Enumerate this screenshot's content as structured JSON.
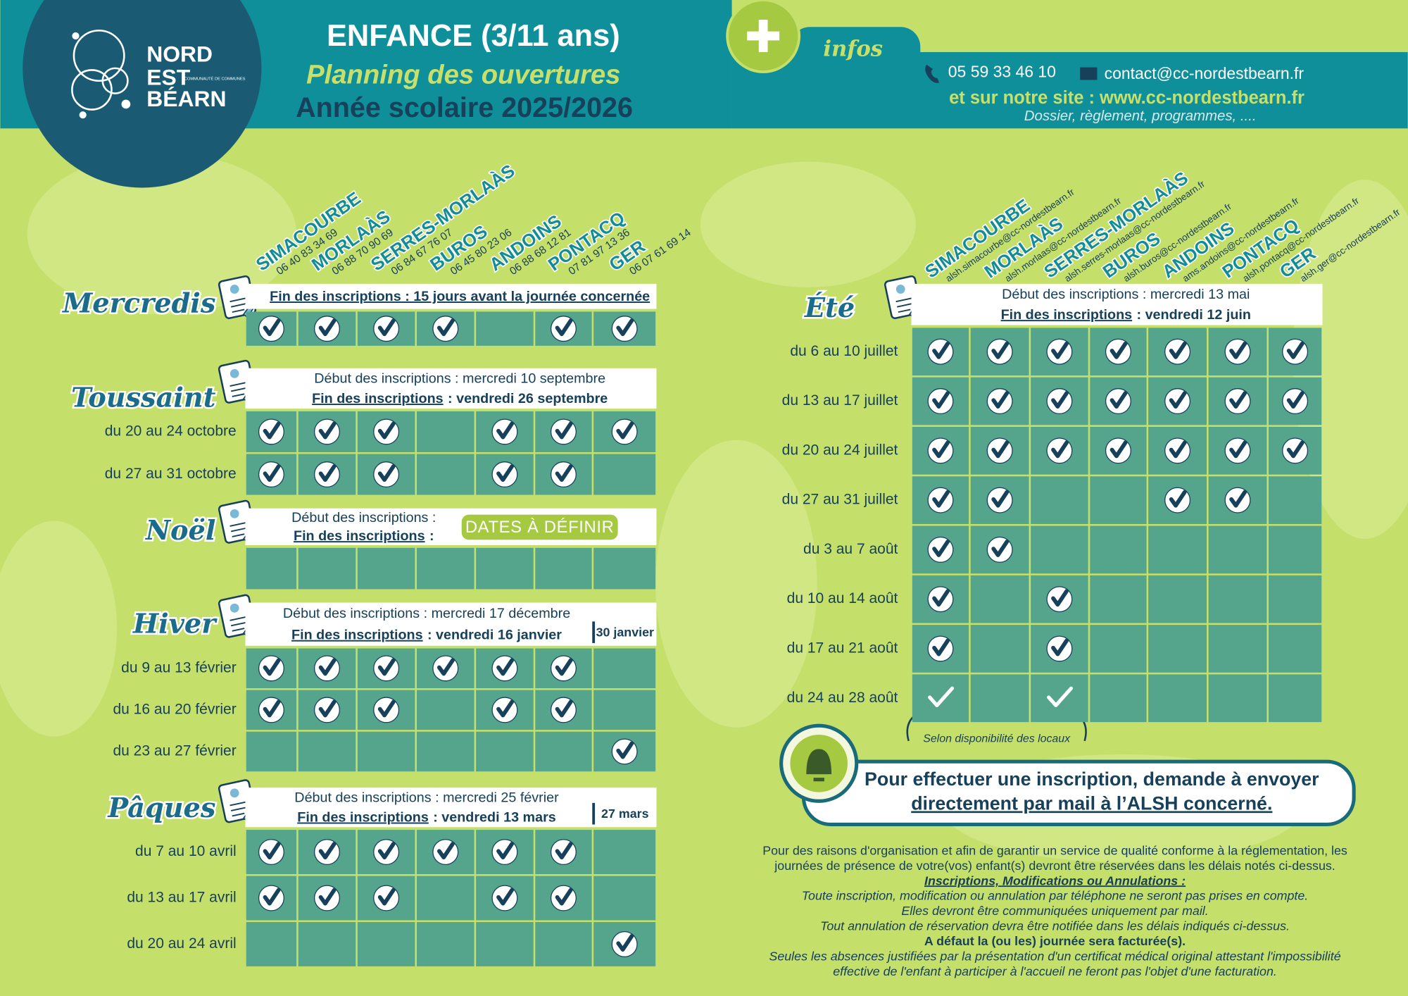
{
  "header": {
    "logo": {
      "line1": "NORD",
      "line2": "EST",
      "line3": "BÉARN",
      "tagline": "COMMUNAUTÉ DE COMMUNES"
    },
    "title": "ENFANCE (3/11 ans)",
    "subtitle": "Planning des ouvertures",
    "year": "Année scolaire 2025/2026"
  },
  "infos": {
    "label": "infos",
    "phone": "05 59 33 46 10",
    "email": "contact@cc-nordestbearn.fr",
    "site": "et sur notre site : www.cc-nordestbearn.fr",
    "note": "Dossier, règlement, programmes, ...."
  },
  "left_centres": [
    {
      "name": "SIMACOURBE",
      "contact": "06 40 83 34 69"
    },
    {
      "name": "MORLAÀS",
      "contact": "06 88 70 90 69"
    },
    {
      "name": "SERRES-MORLAÀS",
      "contact": "06 84 67 76 07"
    },
    {
      "name": "BUROS",
      "contact": "06 45 80 23 06"
    },
    {
      "name": "ANDOINS",
      "contact": "06 88 68 12 81"
    },
    {
      "name": "PONTACQ",
      "contact": "07 81 97 13 36"
    },
    {
      "name": "GER",
      "contact": "06 07 61 69 14"
    }
  ],
  "right_centres": [
    {
      "name": "SIMACOURBE",
      "contact": "alsh.simacourbe@cc-nordestbearn.fr"
    },
    {
      "name": "MORLAÀS",
      "contact": "alsh.morlaas@cc-nordestbearn.fr"
    },
    {
      "name": "SERRES-MORLAÀS",
      "contact": "alsh.serres-morlaas@cc-nordestbearn.fr"
    },
    {
      "name": "BUROS",
      "contact": "alsh.buros@cc-nordestbearn.fr"
    },
    {
      "name": "ANDOINS",
      "contact": "ams.andoins@cc-nordestbearn.fr"
    },
    {
      "name": "PONTACQ",
      "contact": "alsh.pontacq@cc-nordestbearn.fr"
    },
    {
      "name": "GER",
      "contact": "alsh.ger@cc-nordestbearn.fr"
    }
  ],
  "periods": [
    {
      "title": "Mercredis",
      "lines": [
        [
          {
            "text": "Fin des inscriptions : 15 jours avant la journée concernée",
            "underline": true
          }
        ]
      ],
      "rows": [
        {
          "checks": [
            true,
            true,
            true,
            true,
            false,
            true,
            true
          ]
        }
      ]
    },
    {
      "title": "Toussaint",
      "lines": [
        [
          {
            "text": "Début des inscriptions : mercredi 10 septembre"
          }
        ],
        [
          {
            "text": "Fin des inscriptions",
            "underline": true
          },
          {
            "text": ": vendredi 26 septembre"
          }
        ]
      ],
      "rows": [
        {
          "label": "du 20 au 24 octobre",
          "checks": [
            true,
            true,
            true,
            false,
            true,
            true,
            true
          ]
        },
        {
          "label": "du 27 au 31 octobre",
          "checks": [
            true,
            true,
            true,
            false,
            true,
            true,
            false
          ]
        }
      ]
    },
    {
      "title": "Noël",
      "lines": [
        [
          {
            "text": "Début des inscriptions :"
          }
        ],
        [
          {
            "text": "Fin des inscriptions",
            "underline": true
          },
          {
            "text": ":"
          }
        ]
      ],
      "badge": "DATES À DÉFINIR",
      "rows": [
        {
          "checks": [
            false,
            false,
            false,
            false,
            false,
            false,
            false
          ]
        }
      ]
    },
    {
      "title": "Hiver",
      "lines": [
        [
          {
            "text": "Début des inscriptions : mercredi 17 décembre"
          }
        ],
        [
          {
            "text": "Fin des inscriptions",
            "underline": true
          },
          {
            "text": ": vendredi 16 janvier"
          }
        ]
      ],
      "badge": "30 janvier",
      "badge_side": true,
      "rows": [
        {
          "label": "du 9 au 13 février",
          "checks": [
            true,
            true,
            true,
            true,
            true,
            true,
            false
          ]
        },
        {
          "label": "du 16 au 20 février",
          "checks": [
            true,
            true,
            true,
            false,
            true,
            true,
            false
          ]
        },
        {
          "label": "du 23 au 27 février",
          "checks": [
            false,
            false,
            false,
            false,
            false,
            false,
            true
          ]
        }
      ]
    },
    {
      "title": "Pâques",
      "lines": [
        [
          {
            "text": "Début des inscriptions : mercredi 25 février"
          }
        ],
        [
          {
            "text": "Fin des inscriptions",
            "underline": true
          },
          {
            "text": ": vendredi 13 mars"
          }
        ]
      ],
      "badge": "27 mars",
      "badge_side": true,
      "rows": [
        {
          "label": "du 7 au 10 avril",
          "checks": [
            true,
            true,
            true,
            true,
            true,
            true,
            false
          ]
        },
        {
          "label": "du 13 au 17 avril",
          "checks": [
            true,
            true,
            true,
            false,
            true,
            true,
            false
          ]
        },
        {
          "label": "du 20 au 24 avril",
          "checks": [
            false,
            false,
            false,
            false,
            false,
            false,
            true
          ]
        }
      ]
    }
  ],
  "summer": {
    "title": "Été",
    "lines": [
      [
        {
          "text": "Début des inscriptions : mercredi 13 mai"
        }
      ],
      [
        {
          "text": "Fin des inscriptions",
          "underline": true
        },
        {
          "text": ": vendredi 12 juin"
        }
      ]
    ],
    "rows": [
      {
        "label": "du 6 au 10 juillet",
        "checks": [
          true,
          true,
          true,
          true,
          true,
          true,
          true
        ]
      },
      {
        "label": "du 13 au 17 juillet",
        "checks": [
          true,
          true,
          true,
          true,
          true,
          true,
          true
        ]
      },
      {
        "label": "du 20 au 24 juillet",
        "checks": [
          true,
          true,
          true,
          true,
          true,
          true,
          true
        ]
      },
      {
        "label": "du 27 au 31 juillet",
        "checks": [
          true,
          true,
          false,
          false,
          true,
          true,
          false
        ]
      },
      {
        "label": "du 3 au 7 août",
        "checks": [
          true,
          true,
          false,
          false,
          false,
          false,
          false
        ]
      },
      {
        "label": "du 10 au 14 août",
        "checks": [
          true,
          false,
          true,
          false,
          false,
          false,
          false
        ]
      },
      {
        "label": "du 17 au 21 août",
        "checks": [
          true,
          false,
          true,
          false,
          false,
          false,
          false
        ]
      },
      {
        "label": "du 24 au 28 août",
        "checks": [
          true,
          false,
          true,
          false,
          false,
          false,
          false
        ],
        "light": true
      }
    ],
    "note": "Selon disponibilité des locaux"
  },
  "callout": {
    "line1": "Pour effectuer une inscription, demande à envoyer",
    "line2": "directement par mail à l’ALSH concerné."
  },
  "footer": [
    {
      "text": "Pour des raisons d'organisation et afin de garantir un service de qualité conforme à la réglementation, les"
    },
    {
      "text": "journées de présence de votre(vos) enfant(s) devront être réservées dans les délais notés ci-dessus."
    },
    {
      "text": "Inscriptions, Modifications ou Annulations :",
      "italic": true,
      "bold": true,
      "underline": true
    },
    {
      "text": "Toute inscription, modification ou annulation par téléphone ne seront pas prises en compte.",
      "italic": true
    },
    {
      "text": "Elles devront être communiquées uniquement par mail.",
      "italic": true
    },
    {
      "text": "Tout annulation de réservation devra être notifiée dans les délais indiqués ci-dessus.",
      "italic": true
    },
    {
      "text": "A défaut la (ou les) journée sera facturée(s).",
      "bold": true
    },
    {
      "text": "Seules les absences justifiées par la présentation d'un certificat médical original attestant l'impossibilité",
      "italic": true
    },
    {
      "text": "effective de l'enfant à participer à l'accueil ne feront pas l'objet d'une facturation.",
      "italic": true
    }
  ]
}
